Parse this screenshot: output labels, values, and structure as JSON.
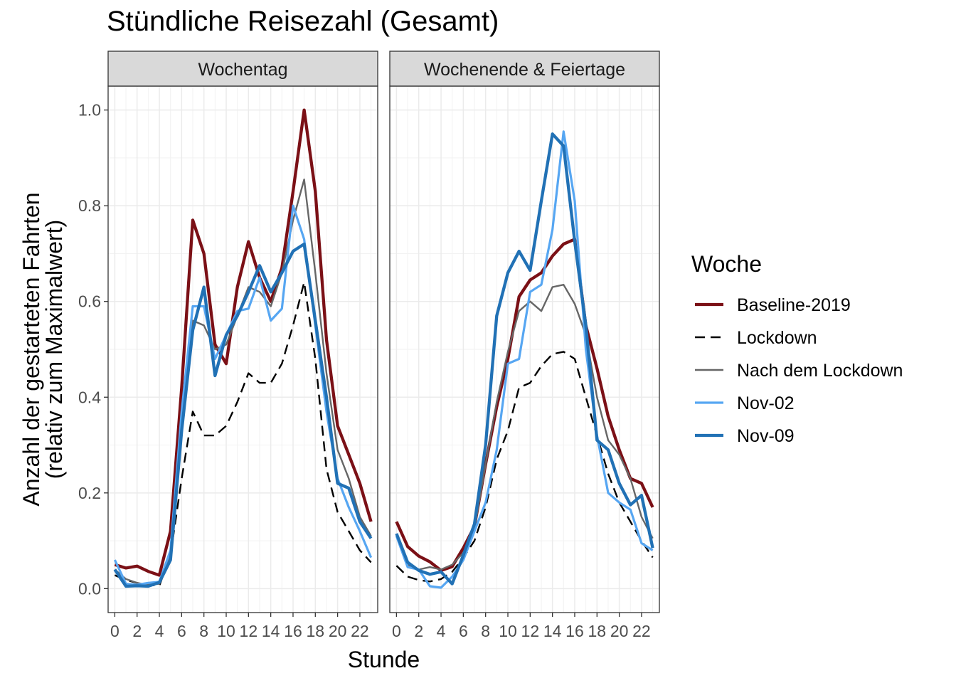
{
  "chart_data": {
    "type": "line",
    "title": "Stündliche Reisezahl (Gesamt)",
    "xlabel": "Stunde",
    "ylabel_lines": [
      "Anzahl der gestarteten Fahrten",
      "(relativ zum Maximalwert)"
    ],
    "x": [
      0,
      1,
      2,
      3,
      4,
      5,
      6,
      7,
      8,
      9,
      10,
      11,
      12,
      13,
      14,
      15,
      16,
      17,
      18,
      19,
      20,
      21,
      22,
      23
    ],
    "xlim": [
      -0.6,
      23.6
    ],
    "ylim": [
      -0.05,
      1.05
    ],
    "x_ticks": [
      0,
      2,
      4,
      6,
      8,
      10,
      12,
      14,
      16,
      18,
      20,
      22
    ],
    "y_ticks": [
      0.0,
      0.2,
      0.4,
      0.6,
      0.8
    ],
    "y_tick_labels": [
      "0.0",
      "0.2",
      "0.4",
      "0.6",
      "0.8"
    ],
    "y_top_tick": 1.0,
    "y_top_tick_label": "1.0",
    "grid": true,
    "legend": {
      "title": "Woche",
      "position": "right"
    },
    "series_styles": [
      {
        "name": "Baseline-2019",
        "color": "#7b1016",
        "width": "thick",
        "dash": "solid"
      },
      {
        "name": "Lockdown",
        "color": "#000000",
        "width": "thin",
        "dash": "dashed"
      },
      {
        "name": "Nach dem Lockdown",
        "color": "#666666",
        "width": "thin",
        "dash": "solid"
      },
      {
        "name": "Nov-02",
        "color": "#56a6f2",
        "width": "medium",
        "dash": "solid"
      },
      {
        "name": "Nov-09",
        "color": "#2171b5",
        "width": "thick",
        "dash": "solid"
      }
    ],
    "panels": [
      {
        "label": "Wochentag",
        "series": [
          {
            "name": "Baseline-2019",
            "values": [
              0.05,
              0.043,
              0.047,
              0.036,
              0.028,
              0.12,
              0.42,
              0.77,
              0.7,
              0.51,
              0.47,
              0.63,
              0.725,
              0.65,
              0.6,
              0.67,
              0.83,
              1.0,
              0.83,
              0.52,
              0.34,
              0.28,
              0.22,
              0.14
            ]
          },
          {
            "name": "Lockdown",
            "values": [
              0.028,
              0.018,
              0.012,
              0.008,
              0.006,
              0.07,
              0.23,
              0.37,
              0.32,
              0.32,
              0.34,
              0.39,
              0.45,
              0.43,
              0.43,
              0.47,
              0.55,
              0.64,
              0.48,
              0.25,
              0.16,
              0.12,
              0.08,
              0.055
            ]
          },
          {
            "name": "Nach dem Lockdown",
            "values": [
              0.04,
              0.02,
              0.012,
              0.008,
              0.01,
              0.07,
              0.35,
              0.56,
              0.55,
              0.5,
              0.51,
              0.57,
              0.63,
              0.62,
              0.59,
              0.66,
              0.77,
              0.855,
              0.66,
              0.45,
              0.29,
              0.23,
              0.15,
              0.11
            ]
          },
          {
            "name": "Nov-02",
            "values": [
              0.06,
              0.01,
              0.008,
              0.012,
              0.014,
              0.08,
              0.37,
              0.59,
              0.59,
              0.48,
              0.53,
              0.58,
              0.585,
              0.65,
              0.56,
              0.585,
              0.8,
              0.73,
              0.55,
              0.37,
              0.23,
              0.17,
              0.12,
              0.065
            ]
          },
          {
            "name": "Nov-09",
            "values": [
              0.04,
              0.005,
              0.006,
              0.005,
              0.013,
              0.06,
              0.33,
              0.54,
              0.63,
              0.445,
              0.53,
              0.57,
              0.62,
              0.675,
              0.62,
              0.66,
              0.705,
              0.72,
              0.56,
              0.4,
              0.22,
              0.21,
              0.14,
              0.105
            ]
          }
        ]
      },
      {
        "label": "Wochenende & Feiertage",
        "series": [
          {
            "name": "Baseline-2019",
            "values": [
              0.14,
              0.088,
              0.068,
              0.056,
              0.038,
              0.046,
              0.085,
              0.13,
              0.26,
              0.38,
              0.48,
              0.61,
              0.645,
              0.66,
              0.695,
              0.72,
              0.73,
              0.55,
              0.46,
              0.36,
              0.29,
              0.23,
              0.22,
              0.17
            ]
          },
          {
            "name": "Lockdown",
            "values": [
              0.048,
              0.025,
              0.018,
              0.015,
              0.02,
              0.035,
              0.065,
              0.1,
              0.17,
              0.27,
              0.33,
              0.42,
              0.43,
              0.465,
              0.49,
              0.495,
              0.48,
              0.4,
              0.32,
              0.24,
              0.18,
              0.14,
              0.1,
              0.065
            ]
          },
          {
            "name": "Nach dem Lockdown",
            "values": [
              0.11,
              0.05,
              0.04,
              0.045,
              0.04,
              0.05,
              0.075,
              0.125,
              0.26,
              0.39,
              0.495,
              0.58,
              0.6,
              0.58,
              0.63,
              0.635,
              0.595,
              0.53,
              0.4,
              0.31,
              0.28,
              0.23,
              0.15,
              0.105
            ]
          },
          {
            "name": "Nov-02",
            "values": [
              0.11,
              0.045,
              0.04,
              0.005,
              0.002,
              0.025,
              0.06,
              0.12,
              0.18,
              0.29,
              0.47,
              0.48,
              0.62,
              0.635,
              0.75,
              0.955,
              0.81,
              0.5,
              0.32,
              0.2,
              0.18,
              0.165,
              0.095,
              0.08
            ]
          },
          {
            "name": "Nov-09",
            "values": [
              0.115,
              0.055,
              0.038,
              0.03,
              0.035,
              0.01,
              0.07,
              0.135,
              0.3,
              0.57,
              0.66,
              0.705,
              0.665,
              0.81,
              0.95,
              0.925,
              0.725,
              0.55,
              0.31,
              0.29,
              0.22,
              0.175,
              0.195,
              0.085
            ]
          }
        ]
      }
    ]
  }
}
